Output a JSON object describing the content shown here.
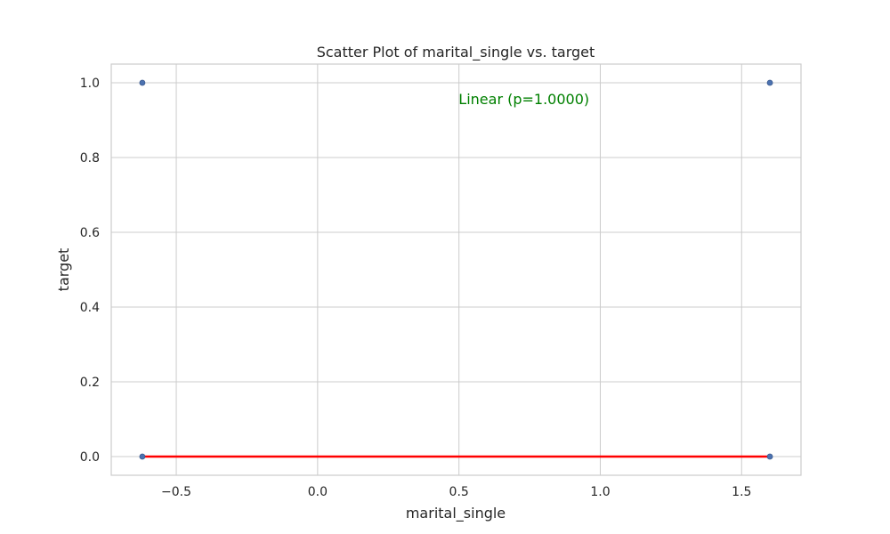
{
  "chart_data": {
    "type": "scatter",
    "title": "Scatter Plot of marital_single vs. target",
    "xlabel": "marital_single",
    "ylabel": "target",
    "xlim": [
      -0.73,
      1.71
    ],
    "ylim": [
      -0.05,
      1.05
    ],
    "xticks": [
      -0.5,
      0.0,
      0.5,
      1.0,
      1.5
    ],
    "xtick_labels": [
      "−0.5",
      "0.0",
      "0.5",
      "1.0",
      "1.5"
    ],
    "yticks": [
      0.0,
      0.2,
      0.4,
      0.6,
      0.8,
      1.0
    ],
    "ytick_labels": [
      "0.0",
      "0.2",
      "0.4",
      "0.6",
      "0.8",
      "1.0"
    ],
    "grid": true,
    "points": [
      {
        "x": -0.62,
        "y": 1.0
      },
      {
        "x": 1.6,
        "y": 1.0
      },
      {
        "x": -0.62,
        "y": 0.0
      },
      {
        "x": 1.6,
        "y": 0.0
      }
    ],
    "fit_line": {
      "x": [
        -0.62,
        1.6
      ],
      "y": [
        0.0,
        0.0
      ]
    },
    "annotation": {
      "text": "Linear (p=1.0000)",
      "x": 0.73,
      "y": 0.955
    },
    "colors": {
      "points": "#4c72b0",
      "fit_line": "#ff0000",
      "annotation": "#008000"
    }
  }
}
